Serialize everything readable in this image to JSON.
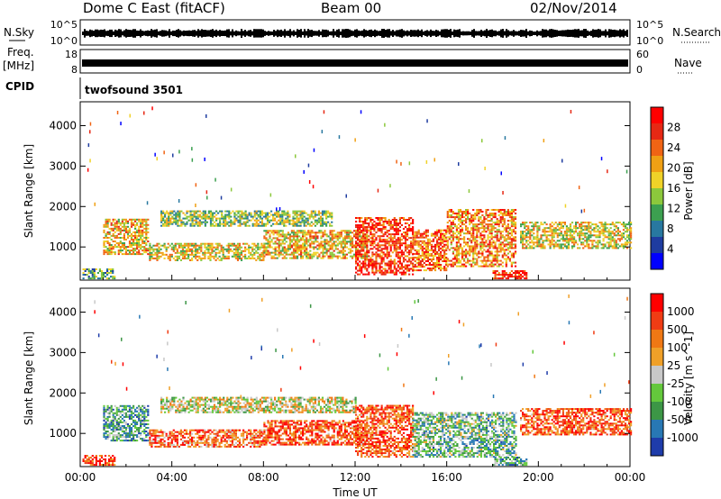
{
  "header": {
    "station": "Dome C East (fitACF)",
    "beam": "Beam 00",
    "date": "02/Nov/2014"
  },
  "strips": {
    "nsky": {
      "label": "N.Sky",
      "ticks": [
        "10^5",
        "10^0"
      ],
      "right_label": "N.Search",
      "right_ticks": [
        "10^5",
        "10^0"
      ]
    },
    "freq": {
      "label_top": "Freq.",
      "label_unit": "[MHz]",
      "ticks": [
        "18",
        "8"
      ],
      "right_label": "Nave",
      "right_ticks": [
        "60",
        "0"
      ]
    },
    "cpid": {
      "label": "CPID",
      "text": "twofsound 3501"
    }
  },
  "chart_data": [
    {
      "type": "heatmap",
      "name": "Power",
      "xlabel": "Time UT",
      "ylabel": "Slant Range [km]",
      "xlim": [
        "00:00",
        "24:00"
      ],
      "ylim": [
        180,
        4590
      ],
      "xticks": [
        "00:00",
        "04:00",
        "08:00",
        "12:00",
        "16:00",
        "20:00",
        "00:00"
      ],
      "yticks": [
        1000,
        2000,
        3000,
        4000
      ],
      "colorbar": {
        "label": "Power [dB]",
        "ticks": [
          4,
          8,
          12,
          16,
          20,
          24,
          28
        ],
        "colors": [
          "#0000ff",
          "#1e3ca0",
          "#2878a0",
          "#3ca050",
          "#8cc83c",
          "#f0d228",
          "#f0a014",
          "#f06414",
          "#e62814",
          "#ff0000"
        ]
      },
      "bands": [
        {
          "t0": 0.1,
          "t1": 1.5,
          "r0": 200,
          "r1": 450,
          "level": 0.35
        },
        {
          "t0": 1.0,
          "t1": 3.0,
          "r0": 800,
          "r1": 1700,
          "level": 0.6
        },
        {
          "t0": 3.0,
          "t1": 8.0,
          "r0": 650,
          "r1": 1100,
          "level": 0.55
        },
        {
          "t0": 3.5,
          "t1": 11.0,
          "r0": 1500,
          "r1": 1900,
          "level": 0.45
        },
        {
          "t0": 8.0,
          "t1": 12.5,
          "r0": 700,
          "r1": 1400,
          "level": 0.6
        },
        {
          "t0": 12.0,
          "t1": 14.5,
          "r0": 300,
          "r1": 1700,
          "level": 0.85
        },
        {
          "t0": 14.5,
          "t1": 16.0,
          "r0": 400,
          "r1": 1400,
          "level": 0.75
        },
        {
          "t0": 16.0,
          "t1": 19.0,
          "r0": 500,
          "r1": 1900,
          "level": 0.7
        },
        {
          "t0": 18.0,
          "t1": 19.5,
          "r0": 200,
          "r1": 400,
          "level": 0.9
        },
        {
          "t0": 19.2,
          "t1": 24.0,
          "r0": 950,
          "r1": 1600,
          "level": 0.55
        }
      ]
    },
    {
      "type": "heatmap",
      "name": "Velocity",
      "xlabel": "Time UT",
      "ylabel": "Slant Range [km]",
      "xlim": [
        "00:00",
        "24:00"
      ],
      "ylim": [
        180,
        4590
      ],
      "xticks": [
        "00:00",
        "04:00",
        "08:00",
        "12:00",
        "16:00",
        "20:00",
        "00:00"
      ],
      "yticks": [
        1000,
        2000,
        3000,
        4000
      ],
      "colorbar": {
        "label": "Velocity [m s^-1]",
        "ticks": [
          1000,
          500,
          100,
          25,
          -25,
          -100,
          -500,
          -1000
        ],
        "colors": [
          "#1e3caa",
          "#2878b4",
          "#3c9646",
          "#64c83c",
          "#c8c8c8",
          "#f0a028",
          "#f07814",
          "#f03c14",
          "#ff0000"
        ]
      },
      "bands": [
        {
          "t0": 0.1,
          "t1": 1.5,
          "r0": 200,
          "r1": 450,
          "level": 0.8
        },
        {
          "t0": 1.0,
          "t1": 3.0,
          "r0": 800,
          "r1": 1700,
          "level": 0.3
        },
        {
          "t0": 3.0,
          "t1": 8.0,
          "r0": 650,
          "r1": 1100,
          "level": 0.75
        },
        {
          "t0": 3.5,
          "t1": 12.0,
          "r0": 1500,
          "r1": 1900,
          "level": 0.5
        },
        {
          "t0": 8.0,
          "t1": 12.5,
          "r0": 700,
          "r1": 1300,
          "level": 0.8
        },
        {
          "t0": 12.0,
          "t1": 14.5,
          "r0": 400,
          "r1": 1700,
          "level": 0.8
        },
        {
          "t0": 14.5,
          "t1": 19.0,
          "r0": 400,
          "r1": 1500,
          "level": 0.35
        },
        {
          "t0": 18.0,
          "t1": 19.5,
          "r0": 200,
          "r1": 400,
          "level": 0.3
        },
        {
          "t0": 19.2,
          "t1": 24.0,
          "r0": 950,
          "r1": 1600,
          "level": 0.8
        }
      ]
    }
  ]
}
